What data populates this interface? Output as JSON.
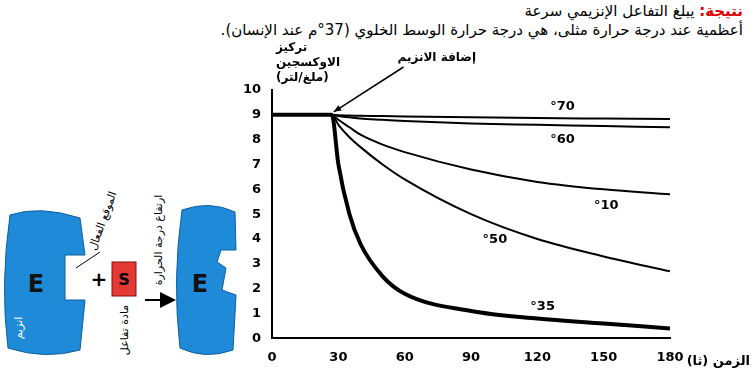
{
  "conclusion": {
    "label": "نتيجة:",
    "lines": [
      "يبلغ التفاعل الإنزيمي سرعة",
      "أعظمية عند درجة حرارة مثلى، هي درجة حرارة الوسط الخلوي (37°م عند الإنسان)."
    ]
  },
  "diagram": {
    "enzyme": "E",
    "substrate": "S",
    "plus": "+",
    "active_site": "الموقع الفعال",
    "enzyme_label": "انزيم",
    "substrate_label": "مادة تفاعل",
    "arrow_label": "ارتفاع درجة الحرارة",
    "enzyme_after": "E"
  },
  "chart_data": {
    "type": "line",
    "x_label": "الزمن (ثا)",
    "y_label": "تركيز الاوكسجين (ملغ/لتر)",
    "x": [
      0,
      27,
      30,
      35,
      40,
      50,
      60,
      90,
      120,
      150,
      180
    ],
    "series": [
      {
        "name": "°70",
        "color": "#000000",
        "values": [
          9,
          9,
          8.98,
          8.97,
          8.96,
          8.95,
          8.93,
          8.9,
          8.87,
          8.85,
          8.83
        ]
      },
      {
        "name": "°60",
        "color": "#000000",
        "values": [
          9,
          9,
          8.95,
          8.9,
          8.85,
          8.8,
          8.75,
          8.65,
          8.6,
          8.55,
          8.5
        ]
      },
      {
        "name": "°10",
        "color": "#000000",
        "values": [
          9,
          9,
          8.8,
          8.5,
          8.2,
          7.8,
          7.5,
          6.8,
          6.3,
          6.0,
          5.8
        ]
      },
      {
        "name": "°50",
        "color": "#000000",
        "values": [
          9,
          9,
          8.6,
          8.1,
          7.7,
          7.0,
          6.4,
          5.0,
          4.0,
          3.3,
          2.7
        ]
      },
      {
        "name": "°35",
        "color": "#000000",
        "values": [
          9,
          9,
          7.0,
          5.0,
          3.8,
          2.5,
          1.8,
          1.1,
          0.8,
          0.6,
          0.4
        ]
      }
    ],
    "annotations": [
      {
        "text": "إضافة الانزيم",
        "x": 27,
        "y": 9
      }
    ],
    "xlim": [
      0,
      180
    ],
    "xticks": [
      0,
      30,
      60,
      90,
      120,
      150,
      180
    ],
    "ylim": [
      0,
      10
    ],
    "yticks": [
      0,
      1,
      2,
      3,
      4,
      5,
      6,
      7,
      8,
      9,
      10
    ],
    "grid": false
  }
}
